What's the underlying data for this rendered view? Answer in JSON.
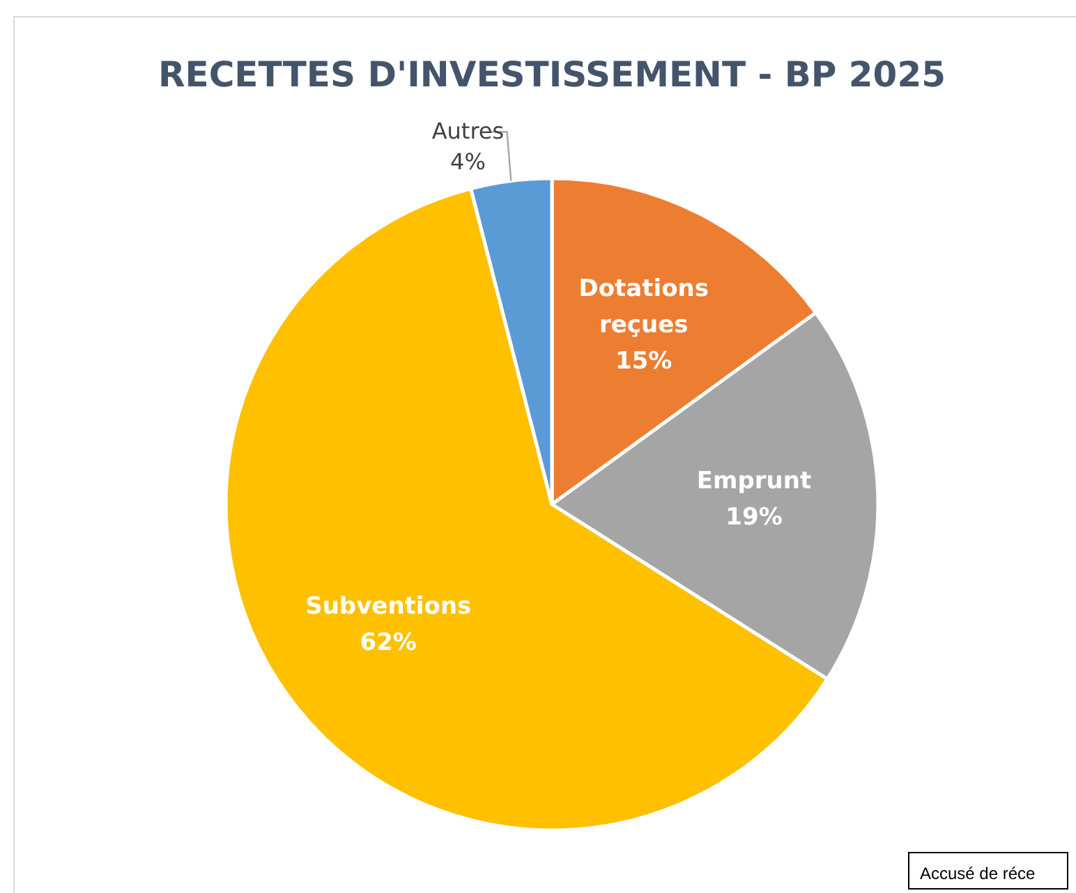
{
  "chart_data": {
    "type": "pie",
    "title": "RECETTES D'INVESTISSEMENT - BP 2025",
    "categories": [
      "Dotations reçues",
      "Emprunt",
      "Subventions",
      "Autres"
    ],
    "values": [
      15,
      19,
      62,
      4
    ],
    "value_labels": [
      "15%",
      "19%",
      "62%",
      "4%"
    ],
    "colors": [
      "#ed7d31",
      "#a5a5a5",
      "#ffc000",
      "#5b9bd5"
    ],
    "annotations": [
      "Accusé de réce"
    ]
  }
}
